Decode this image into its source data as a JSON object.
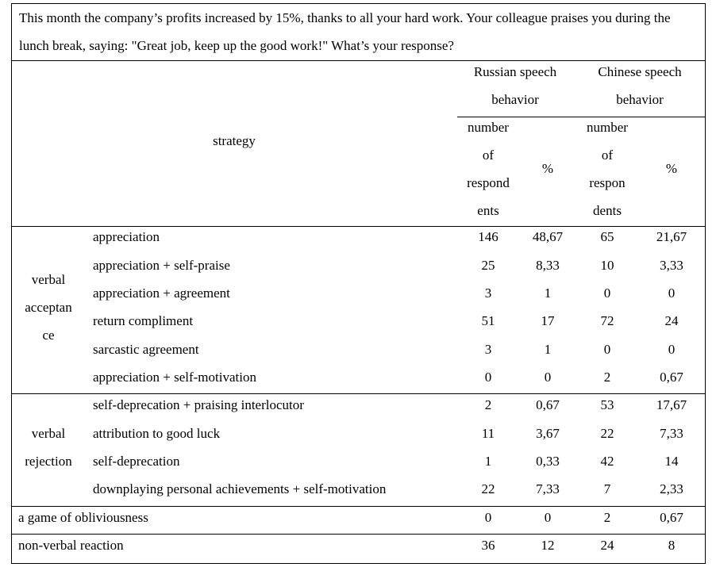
{
  "question": "This month the company’s profits increased by 15%, thanks to all your hard work. Your colleague praises you during the lunch break, saying: \"Great job, keep up the good work!\" What’s your response?",
  "header": {
    "strategy": "strategy",
    "russian_group": [
      "Russian speech",
      "behavior"
    ],
    "chinese_group": [
      "Chinese speech",
      "behavior"
    ],
    "russian_number": [
      "number",
      "of",
      "respond",
      "ents"
    ],
    "chinese_number": [
      "number",
      "of",
      "respon",
      "dents"
    ],
    "percent": "%"
  },
  "groups": {
    "acceptance": [
      "verbal",
      "acceptan",
      "ce"
    ],
    "rejection": [
      "verbal",
      "rejection"
    ]
  },
  "rows": [
    {
      "strategy": "appreciation",
      "ru_n": "146",
      "ru_p": "48,67",
      "zh_n": "65",
      "zh_p": "21,67"
    },
    {
      "strategy": "appreciation + self-praise",
      "ru_n": "25",
      "ru_p": "8,33",
      "zh_n": "10",
      "zh_p": "3,33"
    },
    {
      "strategy": "appreciation + agreement",
      "ru_n": "3",
      "ru_p": "1",
      "zh_n": "0",
      "zh_p": "0"
    },
    {
      "strategy": "return compliment",
      "ru_n": "51",
      "ru_p": "17",
      "zh_n": "72",
      "zh_p": "24"
    },
    {
      "strategy": "sarcastic agreement",
      "ru_n": "3",
      "ru_p": "1",
      "zh_n": "0",
      "zh_p": "0"
    },
    {
      "strategy": "appreciation + self-motivation",
      "ru_n": "0",
      "ru_p": "0",
      "zh_n": "2",
      "zh_p": "0,67"
    },
    {
      "strategy": "self-deprecation + praising interlocutor",
      "ru_n": "2",
      "ru_p": "0,67",
      "zh_n": "53",
      "zh_p": "17,67"
    },
    {
      "strategy": "attribution to good luck",
      "ru_n": "11",
      "ru_p": "3,67",
      "zh_n": "22",
      "zh_p": "7,33"
    },
    {
      "strategy": "self-deprecation",
      "ru_n": "1",
      "ru_p": "0,33",
      "zh_n": "42",
      "zh_p": "14"
    },
    {
      "strategy": "downplaying personal achievements + self-motivation",
      "ru_n": "22",
      "ru_p": "7,33",
      "zh_n": "7",
      "zh_p": "2,33"
    },
    {
      "strategy": "a game of obliviousness",
      "ru_n": "0",
      "ru_p": "0",
      "zh_n": "2",
      "zh_p": "0,67"
    },
    {
      "strategy": "non-verbal reaction",
      "ru_n": "36",
      "ru_p": "12",
      "zh_n": "24",
      "zh_p": "8"
    }
  ]
}
